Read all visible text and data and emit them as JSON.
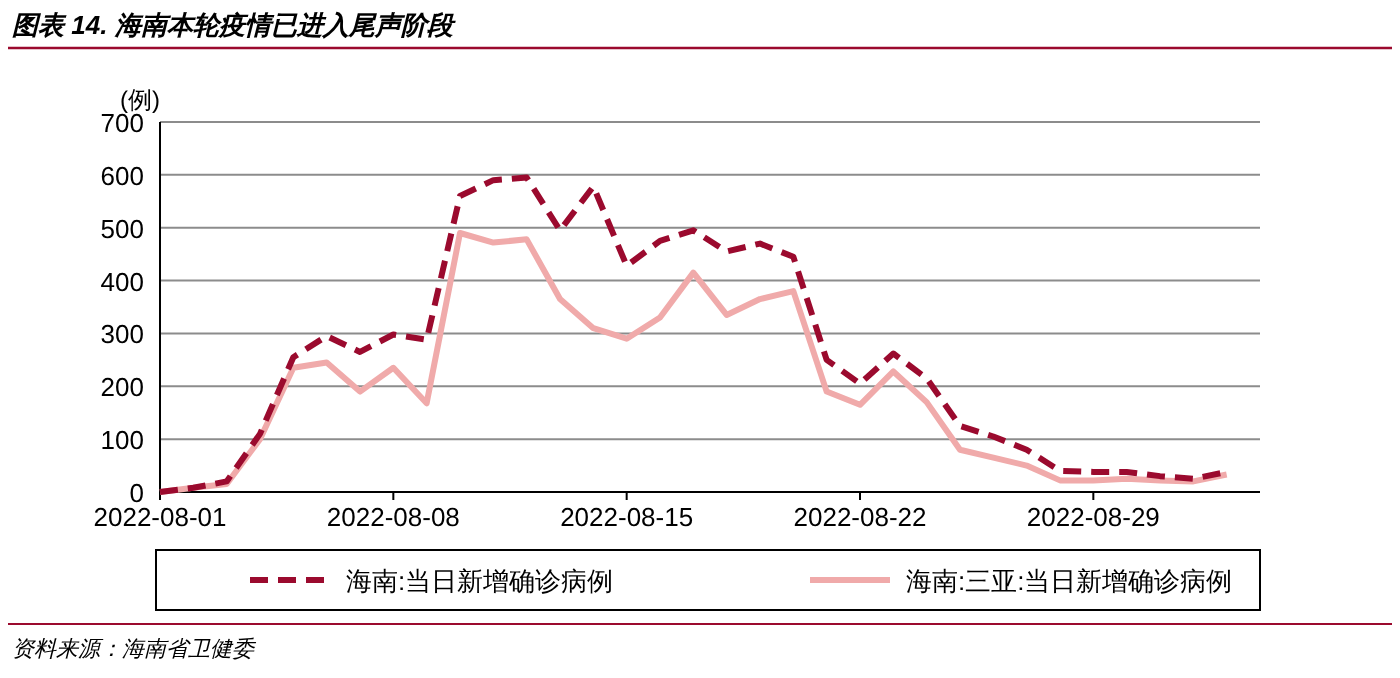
{
  "chart_data": {
    "type": "line",
    "title": "图表 14. 海南本轮疫情已进入尾声阶段",
    "ylabel": "(例)",
    "annotations": [
      "资料来源：海南省卫健委"
    ],
    "x": [
      "2022-08-01",
      "2022-08-02",
      "2022-08-03",
      "2022-08-04",
      "2022-08-05",
      "2022-08-06",
      "2022-08-07",
      "2022-08-08",
      "2022-08-09",
      "2022-08-10",
      "2022-08-11",
      "2022-08-12",
      "2022-08-13",
      "2022-08-14",
      "2022-08-15",
      "2022-08-16",
      "2022-08-17",
      "2022-08-18",
      "2022-08-19",
      "2022-08-20",
      "2022-08-21",
      "2022-08-22",
      "2022-08-23",
      "2022-08-24",
      "2022-08-25",
      "2022-08-26",
      "2022-08-27",
      "2022-08-28",
      "2022-08-29",
      "2022-08-30",
      "2022-08-31",
      "2022-09-01",
      "2022-09-02"
    ],
    "series": [
      {
        "name": "海南:当日新增确诊病例",
        "color": "#9b0a2e",
        "line_style": "dashed",
        "values": [
          0,
          8,
          20,
          110,
          255,
          295,
          265,
          298,
          288,
          560,
          590,
          595,
          495,
          578,
          428,
          475,
          495,
          455,
          470,
          445,
          250,
          205,
          262,
          215,
          125,
          105,
          80,
          40,
          38,
          38,
          30,
          25,
          38
        ]
      },
      {
        "name": "海南:三亚:当日新增确诊病例",
        "color": "#f0aaaa",
        "line_style": "solid",
        "values": [
          0,
          8,
          15,
          100,
          235,
          245,
          190,
          235,
          168,
          490,
          472,
          478,
          365,
          310,
          290,
          330,
          415,
          335,
          365,
          380,
          190,
          165,
          228,
          170,
          80,
          65,
          50,
          22,
          22,
          25,
          22,
          20,
          33
        ]
      }
    ],
    "xlim": [
      "2022-08-01",
      "2022-09-03"
    ],
    "xticks": [
      "2022-08-01",
      "2022-08-08",
      "2022-08-15",
      "2022-08-22",
      "2022-08-29"
    ],
    "ylim": [
      0,
      700
    ],
    "yticks": [
      0,
      100,
      200,
      300,
      400,
      500,
      600,
      700
    ],
    "grid": "y",
    "legend": "bottom"
  }
}
